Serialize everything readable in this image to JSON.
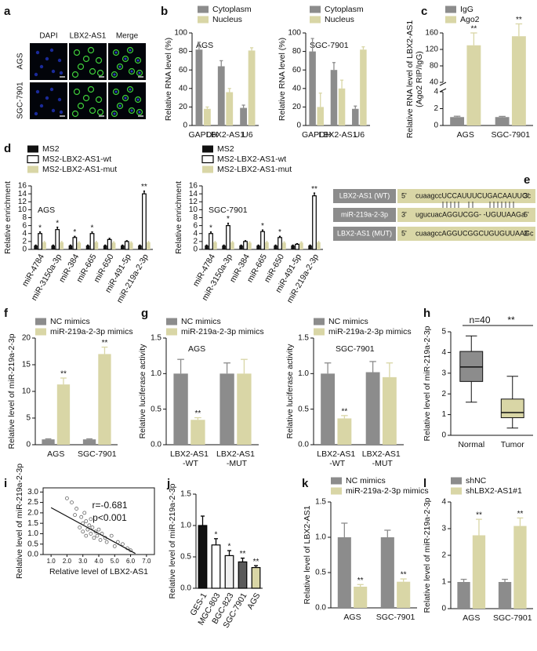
{
  "images": {
    "panel": "a",
    "columns": [
      "DAPI",
      "LBX2-AS1",
      "Merge"
    ],
    "rows": [
      "AGS",
      "SGC-7901"
    ]
  },
  "sequence": {
    "panel": "e",
    "rows": [
      {
        "name": "LBX2-AS1 (WT)",
        "left": "5'",
        "seq": "cuaagccUCCAUUUCUGACAAUUCc",
        "right": "3'"
      },
      {
        "name": "miR-219a-2-3p",
        "left": "3'",
        "seq": "ugucuacAGGUCGG- -UGUUAAGa",
        "right": "5'"
      },
      {
        "name": "LBX2-AS1 (MUT)",
        "left": "5'",
        "seq": "cuaagccAGGUCGGCUGUGUUAAGc",
        "right": "3'"
      }
    ]
  },
  "chart_data": [
    {
      "panel": "b",
      "type": "bar",
      "title": "AGS",
      "categories": [
        "GAPDH",
        "LBX2-AS1",
        "U6"
      ],
      "ylabel": "Relative RNA level (%)",
      "ylim": [
        0,
        100
      ],
      "yticks": [
        0,
        20,
        40,
        60,
        80,
        100
      ],
      "series": [
        {
          "name": "Cytoplasm",
          "color": "#8c8c8c",
          "values": [
            82,
            64,
            19
          ],
          "errors": [
            8,
            6,
            3
          ]
        },
        {
          "name": "Nucleus",
          "color": "#d9d6a6",
          "values": [
            18,
            36,
            81
          ],
          "errors": [
            2,
            4,
            3
          ]
        }
      ]
    },
    {
      "type": "bar",
      "title": "SGC-7901",
      "categories": [
        "GAPDH",
        "LBX2-AS1",
        "U6"
      ],
      "ylabel": "Relative RNA level (%)",
      "ylim": [
        0,
        100
      ],
      "yticks": [
        0,
        20,
        40,
        60,
        80,
        100
      ],
      "series": [
        {
          "name": "Cytoplasm",
          "color": "#8c8c8c",
          "values": [
            80,
            60,
            18
          ],
          "errors": [
            14,
            8,
            3
          ]
        },
        {
          "name": "Nucleus",
          "color": "#d9d6a6",
          "values": [
            20,
            40,
            82
          ],
          "errors": [
            15,
            9,
            3
          ]
        }
      ]
    },
    {
      "panel": "c",
      "type": "bar",
      "categories": [
        "AGS",
        "SGC-7901"
      ],
      "ylabel": [
        "Relative RNA level of LBX2-AS1",
        "(Ago2 RIP/IgG)"
      ],
      "ylim": [
        0,
        160
      ],
      "ybreak": [
        4,
        40
      ],
      "yticks": [
        0,
        2,
        4,
        40,
        80,
        120,
        160
      ],
      "series": [
        {
          "name": "IgG",
          "color": "#8c8c8c",
          "values": [
            1.0,
            1.0
          ],
          "errors": [
            0.1,
            0.08
          ]
        },
        {
          "name": "Ago2",
          "color": "#d9d6a6",
          "values": [
            130,
            152
          ],
          "errors": [
            30,
            30
          ],
          "sig": [
            "**",
            "**"
          ]
        }
      ]
    },
    {
      "panel": "d",
      "type": "bar",
      "title": "AGS",
      "rotate_labels": true,
      "categories": [
        "miR-4784",
        "miR-3150a-3p",
        "miR-384",
        "miR-665",
        "miR-650",
        "miR-491-5p",
        "miR-219a-2-3p"
      ],
      "ylabel": "Relative enrichment",
      "ylim": [
        0,
        16
      ],
      "yticks": [
        0,
        2,
        4,
        6,
        8,
        10,
        12,
        14,
        16
      ],
      "series": [
        {
          "name": "MS2",
          "color": "#111111",
          "values": [
            1,
            1,
            1,
            1,
            1,
            1,
            1
          ],
          "errors": [
            0.1,
            0.1,
            0.1,
            0.1,
            0.1,
            0.1,
            0.1
          ]
        },
        {
          "name": "MS2-LBX2-AS1-wt",
          "color": "#ffffff",
          "edgecolor": "#000000",
          "values": [
            4,
            5,
            3,
            4,
            2.5,
            2,
            14
          ],
          "errors": [
            0.4,
            0.6,
            0.3,
            0.4,
            0.3,
            0.2,
            0.7
          ],
          "sig": [
            "*",
            "*",
            "*",
            "*",
            null,
            null,
            "**"
          ]
        },
        {
          "name": "MS2-LBX2-AS1-mut",
          "color": "#d9d6a6",
          "values": [
            1.8,
            1.8,
            1.7,
            1.8,
            1.7,
            1.7,
            1.8
          ],
          "errors": [
            0.2,
            0.2,
            0.2,
            0.2,
            0.2,
            0.2,
            0.2
          ]
        }
      ]
    },
    {
      "type": "bar",
      "title": "SGC-7901",
      "rotate_labels": true,
      "categories": [
        "miR-4784",
        "miR-3150a-3p",
        "miR-384",
        "miR-665",
        "miR-650",
        "miR-491-5p",
        "miR-219a-2-3p"
      ],
      "ylabel": "Relative enrichment",
      "ylim": [
        0,
        16
      ],
      "yticks": [
        0,
        2,
        4,
        6,
        8,
        10,
        12,
        14,
        16
      ],
      "series": [
        {
          "name": "MS2",
          "color": "#111111",
          "values": [
            1,
            1,
            1,
            1,
            1,
            1,
            1
          ],
          "errors": [
            0.1,
            0.1,
            0.1,
            0.1,
            0.1,
            0.1,
            0.1
          ]
        },
        {
          "name": "MS2-LBX2-AS1-wt",
          "color": "#ffffff",
          "edgecolor": "#000000",
          "values": [
            4,
            6,
            2,
            4.5,
            3,
            1.3,
            13.5
          ],
          "errors": [
            0.4,
            0.6,
            0.2,
            0.4,
            0.3,
            0.15,
            0.7
          ],
          "sig": [
            "*",
            "*",
            null,
            "*",
            "*",
            null,
            "**"
          ]
        },
        {
          "name": "MS2-LBX2-AS1-mut",
          "color": "#d9d6a6",
          "values": [
            1.8,
            1.8,
            1.7,
            1.8,
            1.7,
            1.7,
            1.8
          ],
          "errors": [
            0.2,
            0.2,
            0.2,
            0.2,
            0.2,
            0.2,
            0.2
          ]
        }
      ]
    },
    {
      "panel": "f",
      "type": "bar",
      "categories": [
        "AGS",
        "SGC-7901"
      ],
      "ylabel": "Relative level of miR-219a-2-3p",
      "ylim": [
        0,
        20
      ],
      "yticks": [
        0,
        5,
        10,
        15,
        20
      ],
      "series": [
        {
          "name": "NC mimics",
          "color": "#8c8c8c",
          "values": [
            1.0,
            1.0
          ],
          "errors": [
            0.1,
            0.1
          ]
        },
        {
          "name": "miR-219a-2-3p mimics",
          "color": "#d9d6a6",
          "values": [
            11.3,
            17
          ],
          "errors": [
            1.2,
            1.3
          ],
          "sig": [
            "**",
            "**"
          ]
        }
      ]
    },
    {
      "panel": "g",
      "type": "bar",
      "title": "AGS",
      "wrap_labels": true,
      "categories": [
        "LBX2-AS1 -WT",
        "LBX2-AS1 -MUT"
      ],
      "ylabel": "Relative luciferase activity",
      "ylim": [
        0,
        1.5
      ],
      "yticks": [
        {
          "value": 0,
          "label": "0.0"
        },
        0.5,
        {
          "value": 1,
          "label": "1.0"
        },
        1.5
      ],
      "series": [
        {
          "name": "NC mimics",
          "color": "#8c8c8c",
          "values": [
            1.0,
            1.0
          ],
          "errors": [
            0.2,
            0.15
          ]
        },
        {
          "name": "miR-219a-2-3p mimics",
          "color": "#d9d6a6",
          "values": [
            0.35,
            1.0
          ],
          "errors": [
            0.03,
            0.2
          ],
          "sig": [
            "**",
            null
          ]
        }
      ]
    },
    {
      "type": "bar",
      "title": "SGC-7901",
      "wrap_labels": true,
      "categories": [
        "LBX2-AS1 -WT",
        "LBX2-AS1 -MUT"
      ],
      "ylabel": "Relative luciferase activity",
      "ylim": [
        0,
        1.5
      ],
      "yticks": [
        {
          "value": 0,
          "label": "0.0"
        },
        0.5,
        {
          "value": 1,
          "label": "1.0"
        },
        1.5
      ],
      "series": [
        {
          "name": "NC mimics",
          "color": "#8c8c8c",
          "values": [
            1.0,
            1.02
          ],
          "errors": [
            0.15,
            0.15
          ]
        },
        {
          "name": "miR-219a-2-3p mimics",
          "color": "#d9d6a6",
          "values": [
            0.37,
            0.95
          ],
          "errors": [
            0.04,
            0.2
          ],
          "sig": [
            "**",
            null
          ]
        }
      ]
    },
    {
      "panel": "h",
      "type": "box",
      "categories": [
        "Normal",
        "Tumor"
      ],
      "colors": [
        "#8c8c8c",
        "#d9d6a6"
      ],
      "min": [
        1.6,
        0.35
      ],
      "q1": [
        2.6,
        0.85
      ],
      "median": [
        3.3,
        1.1
      ],
      "q3": [
        4.05,
        1.75
      ],
      "max": [
        4.8,
        2.85
      ],
      "ylabel": "Relative level of miR-219a-2-3p",
      "ylim": [
        0,
        5
      ],
      "yticks": [
        0,
        1,
        2,
        3,
        4,
        5
      ],
      "annotations": [
        "n=40",
        "**"
      ]
    },
    {
      "panel": "i",
      "type": "scatter",
      "xlabel": "Relative level of LBX2-AS1",
      "ylabel": "Relative level of miR-219a-2-3p",
      "xlim": [
        0.5,
        7.5
      ],
      "ylim": [
        0,
        3.2
      ],
      "xticks": [
        {
          "value": 1,
          "label": "1.0"
        },
        {
          "value": 2,
          "label": "2.0"
        },
        {
          "value": 3,
          "label": "3.0"
        },
        {
          "value": 4,
          "label": "4.0"
        },
        {
          "value": 5,
          "label": "5.0"
        },
        {
          "value": 6,
          "label": "6.0"
        },
        {
          "value": 7,
          "label": "7.0"
        }
      ],
      "yticks": [
        {
          "value": 0,
          "label": "0.0"
        },
        0.5,
        {
          "value": 1,
          "label": "1.0"
        },
        1.5,
        {
          "value": 2,
          "label": "2.0"
        },
        2.5,
        {
          "value": 3,
          "label": "3.0"
        }
      ],
      "x": [
        2.0,
        2.3,
        2.5,
        2.6,
        2.8,
        2.9,
        3.0,
        3.0,
        3.1,
        3.2,
        3.2,
        3.3,
        3.4,
        3.5,
        3.5,
        3.6,
        3.7,
        3.8,
        3.9,
        4.0,
        4.1,
        4.2,
        4.4,
        4.5,
        4.8,
        5.0,
        5.2,
        5.5,
        5.8,
        6.0
      ],
      "y": [
        2.7,
        2.5,
        1.9,
        2.2,
        1.3,
        1.8,
        1.5,
        1.1,
        2.0,
        1.6,
        0.9,
        1.2,
        1.4,
        1.0,
        1.7,
        1.3,
        0.8,
        1.1,
        0.9,
        1.2,
        0.7,
        1.0,
        0.8,
        0.6,
        0.9,
        0.4,
        0.6,
        0.5,
        0.3,
        0.2
      ],
      "fit": {
        "x": [
          1.0,
          6.3
        ],
        "y": [
          2.25,
          0.05
        ]
      },
      "annotations": [
        "r=-0.681",
        "p<0.001"
      ]
    },
    {
      "panel": "j",
      "type": "bar",
      "rotate_labels": true,
      "categories": [
        "GES-1",
        "MGC-803",
        "BGC-823",
        "SGC-7901",
        "AGS"
      ],
      "ylabel": "Relative level of miR-219a-2-3p",
      "ylim": [
        0,
        1.5
      ],
      "yticks": [
        {
          "value": 0,
          "label": "0.0"
        },
        0.5,
        {
          "value": 1,
          "label": "1.0"
        },
        1.5
      ],
      "series": [
        {
          "colors": [
            "#111111",
            "#ffffff",
            "#f0f0f0",
            "#5a5a5a",
            "#d9d6a6"
          ],
          "edgecolor": "#000000",
          "values": [
            1.0,
            0.69,
            0.52,
            0.42,
            0.33
          ],
          "errors": [
            0.15,
            0.1,
            0.08,
            0.06,
            0.03
          ],
          "sig": [
            null,
            "*",
            "*",
            "**",
            "**"
          ]
        }
      ]
    },
    {
      "panel": "k",
      "type": "bar",
      "categories": [
        "AGS",
        "SGC-7901"
      ],
      "ylabel": "Relative level of LBX2-AS1",
      "ylim": [
        0,
        1.5
      ],
      "yticks": [
        {
          "value": 0,
          "label": "0.0"
        },
        0.5,
        {
          "value": 1,
          "label": "1.0"
        },
        1.5
      ],
      "series": [
        {
          "name": "NC mimics",
          "color": "#8c8c8c",
          "values": [
            1.0,
            1.0
          ],
          "errors": [
            0.2,
            0.1
          ]
        },
        {
          "name": "miR-219a-2-3p mimics",
          "color": "#d9d6a6",
          "values": [
            0.3,
            0.37
          ],
          "errors": [
            0.03,
            0.04
          ],
          "sig": [
            "**",
            "**"
          ]
        }
      ]
    },
    {
      "panel": "l",
      "type": "bar",
      "categories": [
        "AGS",
        "SGC-7901"
      ],
      "ylabel": "Relative level of miR-219a-2-3p",
      "ylim": [
        0,
        4
      ],
      "yticks": [
        0,
        1,
        2,
        3,
        4
      ],
      "series": [
        {
          "name": "shNC",
          "color": "#8c8c8c",
          "values": [
            1.0,
            1.0
          ],
          "errors": [
            0.1,
            0.1
          ]
        },
        {
          "name": "shLBX2-AS1#1",
          "color": "#d9d6a6",
          "values": [
            2.75,
            3.1
          ],
          "errors": [
            0.6,
            0.3
          ],
          "sig": [
            "**",
            "**"
          ]
        }
      ]
    }
  ]
}
